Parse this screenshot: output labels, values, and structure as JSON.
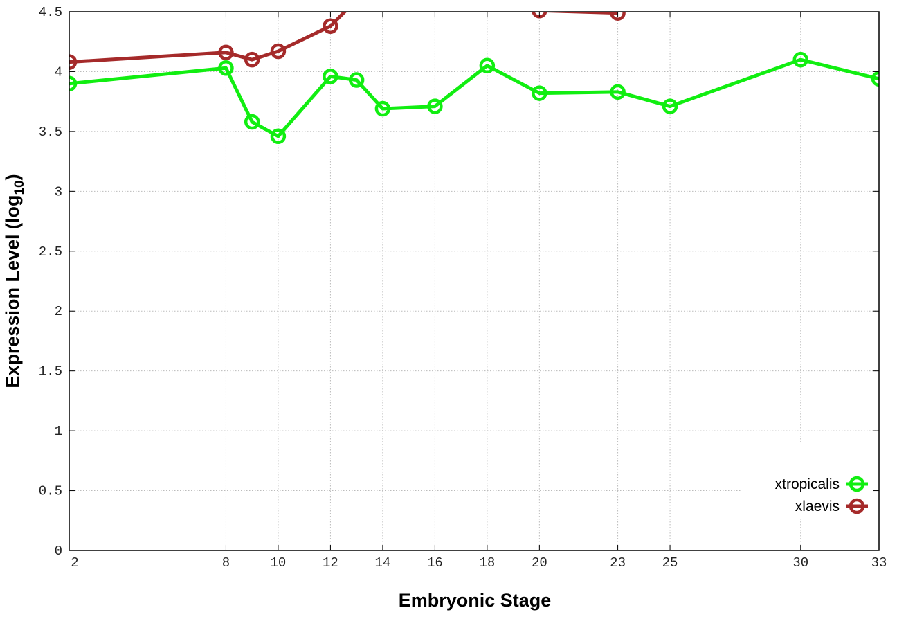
{
  "chart_data": {
    "type": "line",
    "xlabel": "Embryonic Stage",
    "ylabel": "Expression Level (log",
    "ylabel_sub": "10",
    "ylabel_close": ")",
    "xlim": [
      2,
      33
    ],
    "ylim": [
      0,
      4.5
    ],
    "x_ticks": [
      2,
      8,
      10,
      12,
      14,
      16,
      18,
      20,
      23,
      25,
      30,
      33
    ],
    "y_ticks": [
      0,
      0.5,
      1,
      1.5,
      2,
      2.5,
      3,
      3.5,
      4,
      4.5
    ],
    "y_tick_labels": [
      "0",
      "0.5",
      "1",
      "1.5",
      "2",
      "2.5",
      "3",
      "3.5",
      "4",
      "4.5"
    ],
    "grid": true,
    "legend_position": "bottom-right",
    "series": [
      {
        "name": "xtropicalis",
        "color": "#11ee11",
        "x": [
          2,
          8,
          9,
          10,
          12,
          13,
          14,
          16,
          18,
          20,
          23,
          25,
          30,
          33
        ],
        "y": [
          3.9,
          4.03,
          3.58,
          3.46,
          3.96,
          3.93,
          3.69,
          3.71,
          4.05,
          3.82,
          3.83,
          3.71,
          4.1,
          3.94
        ]
      },
      {
        "name": "xlaevis",
        "color": "#a52a2a",
        "x": [
          2,
          8,
          9,
          10,
          12,
          13,
          20,
          23
        ],
        "y": [
          4.08,
          4.16,
          4.1,
          4.17,
          4.38,
          4.6,
          4.51,
          4.49
        ]
      }
    ]
  }
}
